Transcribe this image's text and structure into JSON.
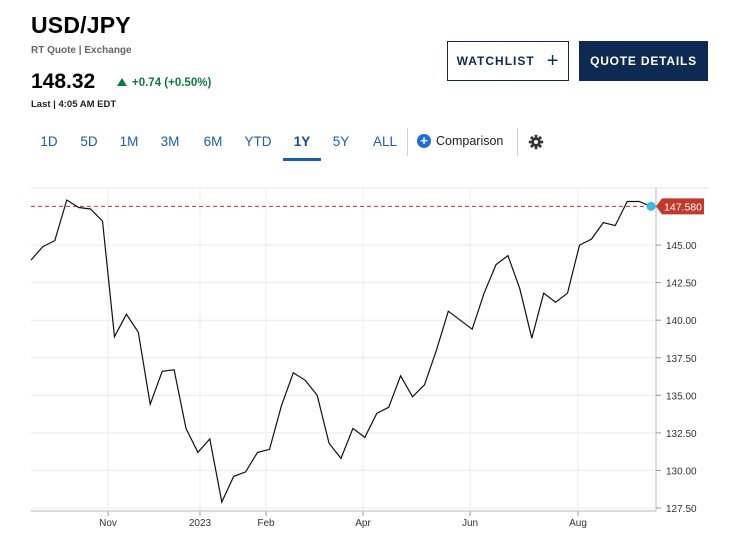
{
  "header": {
    "symbol": "USD/JPY",
    "source": "RT Quote | Exchange",
    "price": "148.32",
    "change": "+0.74 (+0.50%)",
    "last_time": "Last | 4:05 AM EDT"
  },
  "buttons": {
    "watchlist": "WATCHLIST",
    "quote_details": "QUOTE DETAILS"
  },
  "ranges": [
    "1D",
    "5D",
    "1M",
    "3M",
    "6M",
    "YTD",
    "1Y",
    "5Y",
    "ALL"
  ],
  "active_range": "1Y",
  "comparison_label": "Comparison",
  "colors": {
    "navy": "#0e2a52",
    "up": "#0c7a3e",
    "last_price": "#c0392b",
    "marker": "#37b7e6"
  },
  "chart_data": {
    "type": "line",
    "y_ticks": [
      "145.00",
      "142.50",
      "140.00",
      "137.50",
      "135.00",
      "132.50",
      "130.00",
      "127.50"
    ],
    "x_labels": [
      "Nov",
      "2023",
      "Feb",
      "Apr",
      "Jun",
      "Aug"
    ],
    "last_price_label": "147.580",
    "last_price": 147.58,
    "ylim": [
      127.3,
      148.8
    ],
    "values": [
      144.0,
      144.9,
      145.3,
      148.0,
      147.5,
      147.4,
      146.6,
      138.9,
      140.4,
      139.2,
      134.4,
      136.6,
      136.7,
      132.8,
      131.2,
      132.1,
      127.9,
      129.6,
      129.9,
      131.2,
      131.4,
      134.3,
      136.5,
      136.0,
      135.0,
      131.8,
      130.8,
      132.8,
      132.2,
      133.8,
      134.2,
      136.3,
      134.9,
      135.7,
      138.0,
      140.6,
      140.0,
      139.4,
      141.8,
      143.7,
      144.3,
      142.1,
      138.8,
      141.8,
      141.2,
      141.8,
      145.0,
      145.4,
      146.5,
      146.3,
      147.9,
      147.9,
      147.58
    ]
  }
}
